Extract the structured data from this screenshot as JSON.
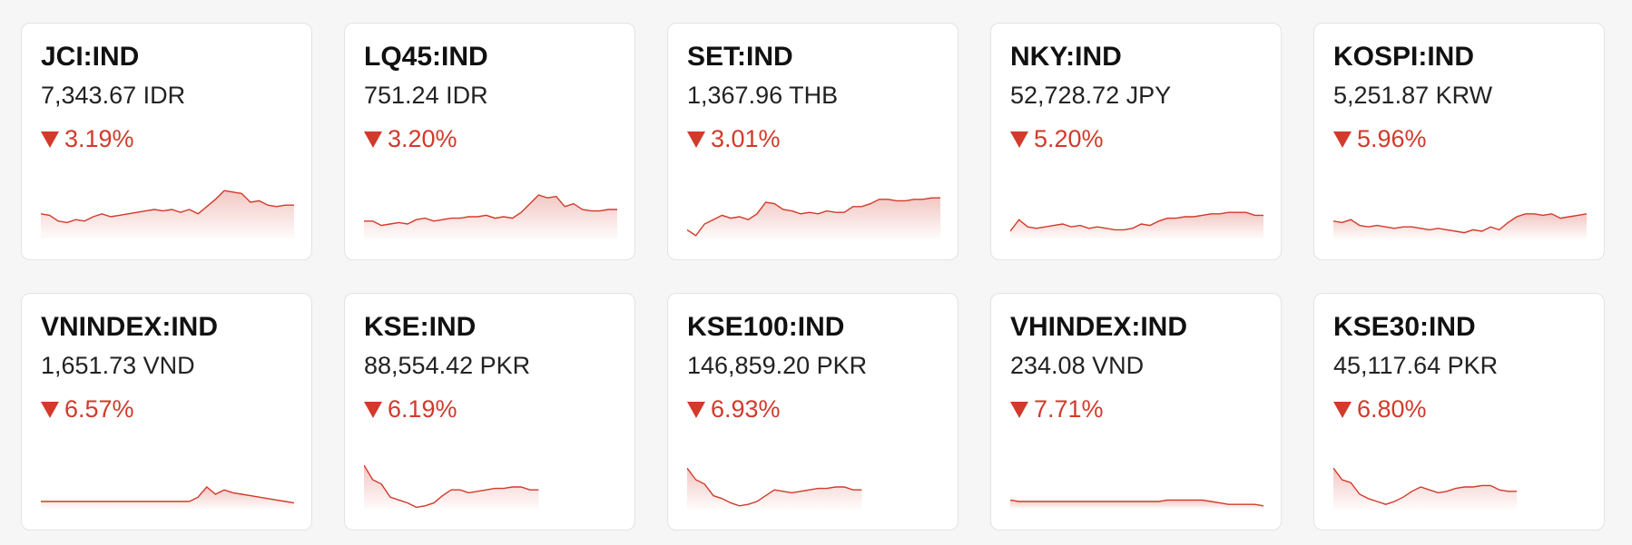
{
  "cards": [
    {
      "name": "JCI:IND",
      "price": "7,343.67 IDR",
      "change": "3.19%",
      "sparkline": [
        17,
        16,
        12,
        11,
        13,
        12,
        15,
        17,
        15,
        16,
        17,
        18,
        19,
        20,
        19,
        20,
        18,
        20,
        17,
        22,
        27,
        33,
        32,
        31,
        25,
        26,
        23,
        22,
        23,
        23
      ]
    },
    {
      "name": "LQ45:IND",
      "price": "751.24 IDR",
      "change": "3.20%",
      "sparkline": [
        12,
        12,
        9,
        10,
        11,
        10,
        13,
        14,
        12,
        13,
        14,
        14,
        15,
        15,
        16,
        14,
        15,
        14,
        18,
        24,
        30,
        28,
        29,
        22,
        24,
        20,
        19,
        19,
        20,
        20
      ]
    },
    {
      "name": "SET:IND",
      "price": "1,367.96 THB",
      "change": "3.01%",
      "sparkline": [
        6,
        2,
        10,
        13,
        16,
        14,
        15,
        13,
        17,
        25,
        24,
        20,
        19,
        17,
        18,
        17,
        19,
        18,
        18,
        22,
        22,
        24,
        27,
        27,
        26,
        26,
        27,
        27,
        28,
        28
      ]
    },
    {
      "name": "NKY:IND",
      "price": "52,728.72 JPY",
      "change": "5.20%",
      "sparkline": [
        5,
        13,
        8,
        7,
        8,
        9,
        10,
        8,
        9,
        7,
        8,
        7,
        6,
        6,
        7,
        10,
        9,
        12,
        14,
        14,
        15,
        15,
        16,
        17,
        17,
        18,
        18,
        18,
        16,
        16
      ]
    },
    {
      "name": "KOSPI:IND",
      "price": "5,251.87 KRW",
      "change": "5.96%",
      "sparkline": [
        12,
        11,
        13,
        9,
        8,
        9,
        8,
        7,
        8,
        8,
        7,
        6,
        7,
        6,
        5,
        4,
        6,
        5,
        8,
        6,
        11,
        15,
        17,
        17,
        16,
        17,
        14,
        15,
        16,
        17
      ]
    },
    {
      "name": "VNINDEX:IND",
      "price": "1,651.73 VND",
      "change": "6.57%",
      "sparkline": [
        5,
        5,
        5,
        5,
        5,
        5,
        5,
        5,
        5,
        5,
        5,
        5,
        5,
        5,
        5,
        5,
        5,
        5,
        8,
        15,
        10,
        13,
        11,
        10,
        9,
        8,
        7,
        6,
        5,
        4
      ]
    },
    {
      "name": "KSE:IND",
      "price": "88,554.42 PKR",
      "change": "6.19%",
      "sparkline": [
        30,
        20,
        17,
        8,
        6,
        4,
        1,
        2,
        4,
        9,
        13,
        13,
        11,
        12,
        13,
        14,
        14,
        15,
        15,
        13,
        13,
        null,
        null,
        null,
        null,
        null,
        null,
        null,
        null,
        null
      ]
    },
    {
      "name": "KSE100:IND",
      "price": "146,859.20 PKR",
      "change": "6.93%",
      "sparkline": [
        28,
        20,
        17,
        9,
        7,
        4,
        2,
        3,
        5,
        9,
        13,
        12,
        11,
        12,
        13,
        14,
        14,
        15,
        15,
        13,
        13,
        null,
        null,
        null,
        null,
        null,
        null,
        null,
        null,
        null
      ]
    },
    {
      "name": "VHINDEX:IND",
      "price": "234.08 VND",
      "change": "7.71%",
      "sparkline": [
        6,
        5,
        5,
        5,
        5,
        5,
        5,
        5,
        5,
        5,
        5,
        5,
        5,
        5,
        5,
        5,
        5,
        5,
        6,
        6,
        6,
        6,
        6,
        5,
        4,
        3,
        3,
        3,
        3,
        2
      ]
    },
    {
      "name": "KSE30:IND",
      "price": "45,117.64 PKR",
      "change": "6.80%",
      "sparkline": [
        28,
        20,
        18,
        10,
        7,
        5,
        3,
        5,
        8,
        12,
        15,
        13,
        11,
        12,
        14,
        15,
        15,
        16,
        16,
        13,
        12,
        12,
        null,
        null,
        null,
        null,
        null,
        null,
        null,
        null
      ]
    }
  ]
}
